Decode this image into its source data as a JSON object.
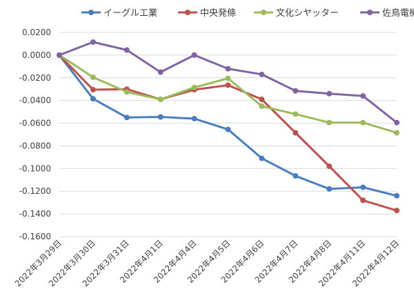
{
  "chart_data": {
    "type": "line",
    "title": "",
    "xlabel": "",
    "ylabel": "",
    "categories": [
      "2022年3月29日",
      "2022年3月30日",
      "2022年3月31日",
      "2022年4月1日",
      "2022年4月4日",
      "2022年4月5日",
      "2022年4月6日",
      "2022年4月7日",
      "2022年4月8日",
      "2022年4月11日",
      "2022年4月12日"
    ],
    "ylim": [
      -0.16,
      0.02
    ],
    "yticks": [
      0.02,
      0.0,
      -0.02,
      -0.04,
      -0.06,
      -0.08,
      -0.1,
      -0.12,
      -0.14,
      -0.16
    ],
    "ytick_labels": [
      "0.0200",
      "0.0000",
      "-0.0200",
      "-0.0400",
      "-0.0600",
      "-0.0800",
      "-0.1000",
      "-0.1200",
      "-0.1400",
      "-0.1600"
    ],
    "grid": "horizontal",
    "legend_position": "top",
    "series": [
      {
        "name": "イーグル工業",
        "color": "#4a7dbf",
        "values": [
          0.0,
          -0.0385,
          -0.055,
          -0.0545,
          -0.056,
          -0.0655,
          -0.091,
          -0.1065,
          -0.118,
          -0.1165,
          -0.124
        ]
      },
      {
        "name": "中央発條",
        "color": "#c0504d",
        "values": [
          0.0,
          -0.0305,
          -0.03,
          -0.039,
          -0.0305,
          -0.0265,
          -0.039,
          -0.0685,
          -0.098,
          -0.128,
          -0.137
        ]
      },
      {
        "name": "文化シヤッター",
        "color": "#9bbb59",
        "values": [
          0.0,
          -0.0195,
          -0.0325,
          -0.039,
          -0.0285,
          -0.0205,
          -0.045,
          -0.052,
          -0.0595,
          -0.0595,
          -0.0685
        ]
      },
      {
        "name": "佐鳥電機",
        "color": "#8064a2",
        "values": [
          0.0,
          0.0115,
          0.0045,
          -0.015,
          0.0,
          -0.012,
          -0.017,
          -0.0315,
          -0.034,
          -0.036,
          -0.0595
        ]
      }
    ]
  }
}
